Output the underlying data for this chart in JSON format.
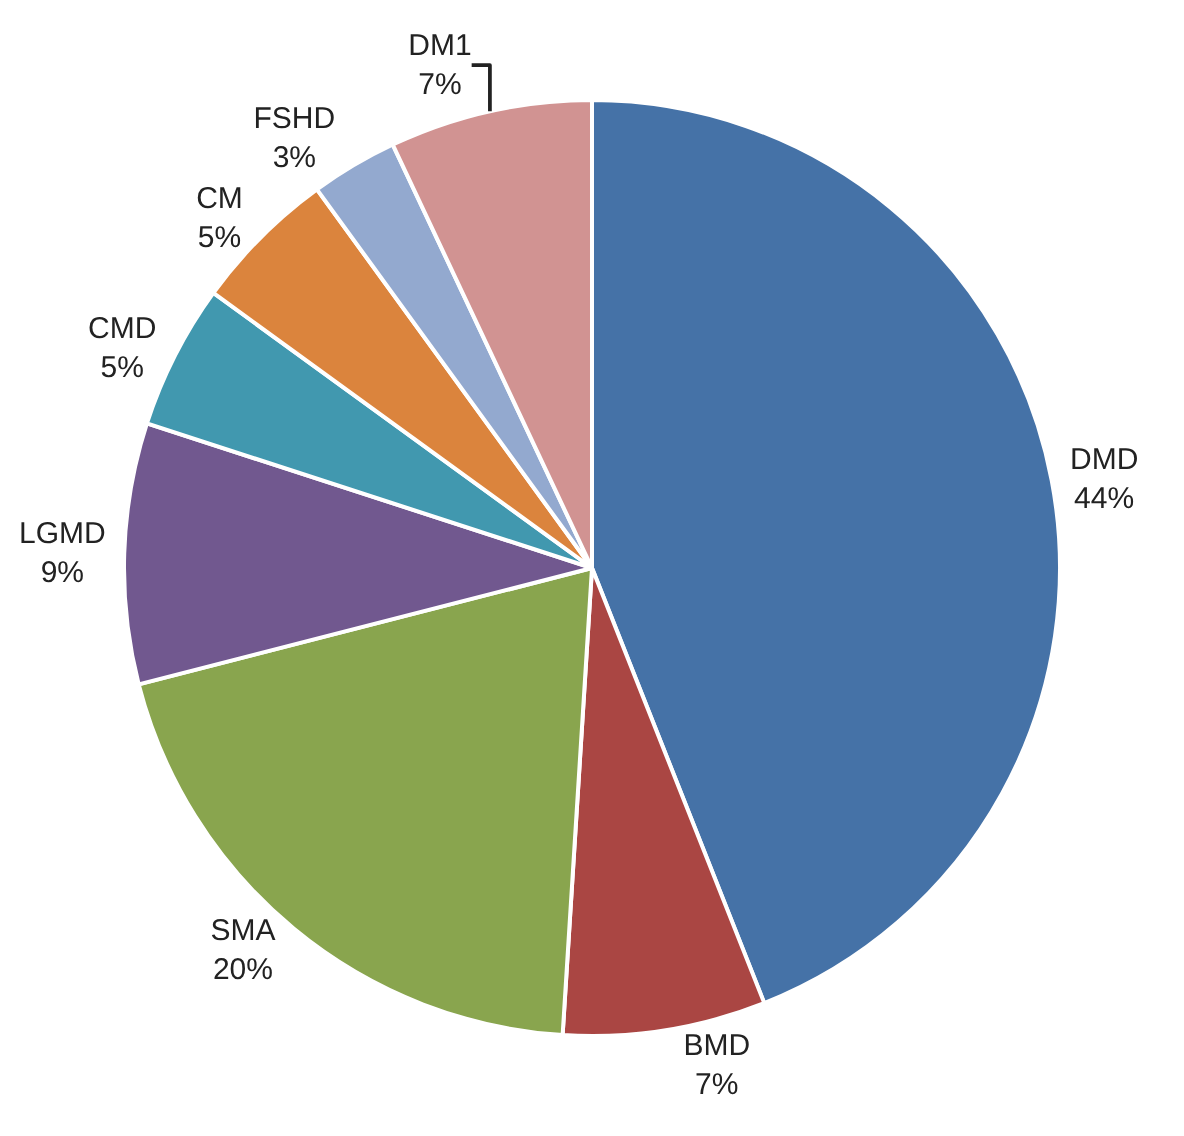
{
  "chart_data": {
    "type": "pie",
    "categories": [
      "DMD",
      "BMD",
      "SMA",
      "LGMD",
      "CMD",
      "CM",
      "FSHD",
      "DM1"
    ],
    "values": [
      44,
      7,
      20,
      9,
      5,
      5,
      3,
      7
    ],
    "value_labels": [
      "44%",
      "7%",
      "20%",
      "9%",
      "5%",
      "5%",
      "3%",
      "7%"
    ],
    "colors": [
      "#4572a7",
      "#aa4643",
      "#89a54e",
      "#71588f",
      "#4198af",
      "#db843d",
      "#93a9cf",
      "#d19392"
    ],
    "legend": false
  }
}
